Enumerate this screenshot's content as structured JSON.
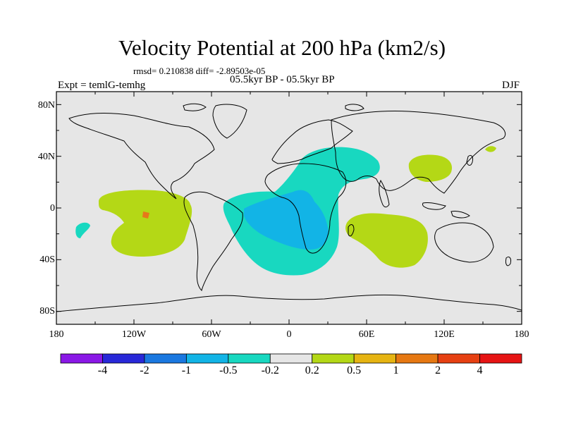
{
  "title": "Velocity Potential at 200 hPa (km2/s)",
  "stats_line": "rmsd= 0.210838 diff= -2.89503e-05",
  "subtitle": "05.5kyr BP - 05.5kyr BP",
  "experiment": "Expt = temlG-temhg",
  "season": "DJF",
  "map": {
    "lat_ticks": [
      "80N",
      "40N",
      "0",
      "40S",
      "80S"
    ],
    "lon_ticks": [
      "180",
      "120W",
      "60W",
      "0",
      "60E",
      "120E",
      "180"
    ],
    "background_color": "#e6e6e6"
  },
  "colorbar": {
    "colors": [
      "#8a18e6",
      "#2828d8",
      "#1a78e0",
      "#12b4e6",
      "#18d8c0",
      "#e6e6e6",
      "#b4d816",
      "#e6b412",
      "#e67812",
      "#e64012",
      "#e61414"
    ],
    "labels": [
      "-4",
      "-2",
      "-1",
      "-0.5",
      "-0.2",
      "0.2",
      "0.5",
      "1",
      "2",
      "4"
    ]
  }
}
